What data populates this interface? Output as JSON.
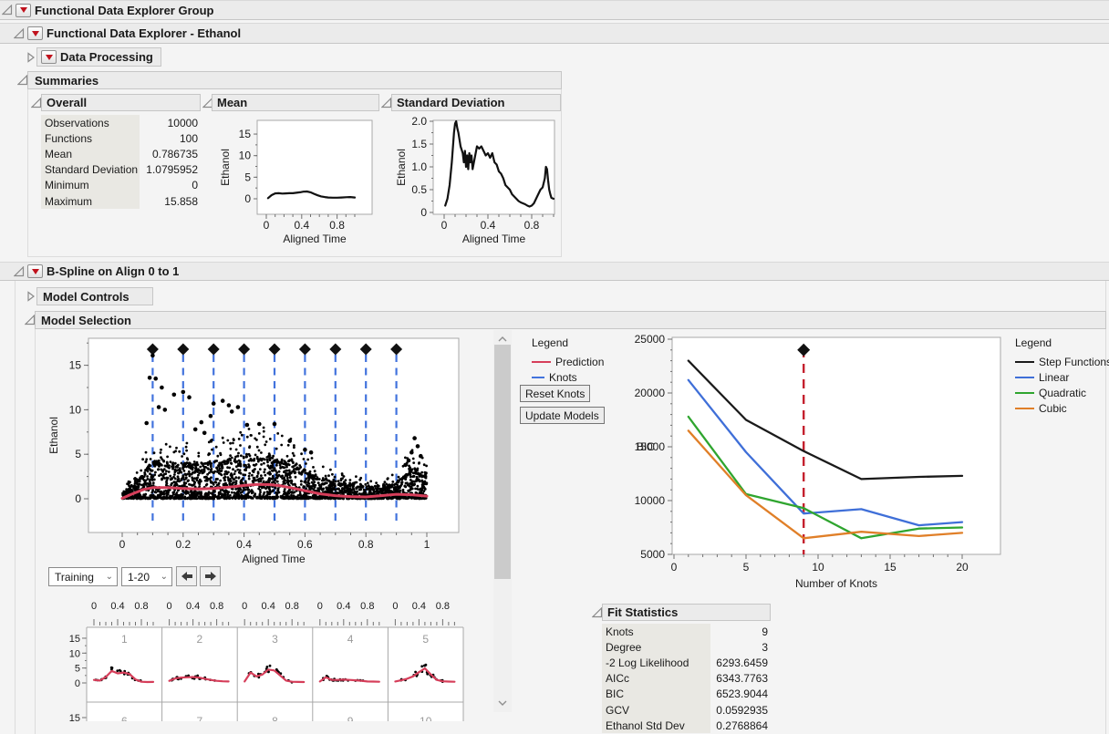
{
  "header": {
    "group_title": "Functional Data Explorer Group",
    "explorer_title": "Functional Data Explorer - Ethanol",
    "data_processing": "Data Processing",
    "summaries_title": "Summaries"
  },
  "summaries": {
    "overall": {
      "title": "Overall",
      "rows": [
        {
          "label": "Observations",
          "value": "10000"
        },
        {
          "label": "Functions",
          "value": "100"
        },
        {
          "label": "Mean",
          "value": "0.786735"
        },
        {
          "label": "Standard Deviation",
          "value": "1.0795952"
        },
        {
          "label": "Minimum",
          "value": "0"
        },
        {
          "label": "Maximum",
          "value": "15.858"
        }
      ]
    },
    "mean_title": "Mean",
    "stddev_title": "Standard Deviation"
  },
  "bspline": {
    "title": "B-Spline on Align 0 to 1",
    "model_controls": "Model Controls",
    "model_selection": "Model Selection"
  },
  "model_selection": {
    "training_dropdown": "Training",
    "range_dropdown": "1-20",
    "left_legend": {
      "title": "Legend",
      "items": [
        {
          "label": "Prediction",
          "color": "#d63e5a",
          "dash": false
        },
        {
          "label": "Knots",
          "color": "#4273dd",
          "dash": true
        }
      ]
    },
    "reset_knots": "Reset Knots",
    "update_models": "Update Models",
    "right_legend": {
      "title": "Legend",
      "items": [
        {
          "label": "Step Functions",
          "color": "#1a1a1a",
          "dash": false
        },
        {
          "label": "Linear",
          "color": "#3f6fd8",
          "dash": false
        },
        {
          "label": "Quadratic",
          "color": "#2fa52f",
          "dash": false
        },
        {
          "label": "Cubic",
          "color": "#e07f28",
          "dash": false
        }
      ]
    }
  },
  "fit_statistics": {
    "title": "Fit Statistics",
    "rows": [
      {
        "label": "Knots",
        "value": "9"
      },
      {
        "label": "Degree",
        "value": "3"
      },
      {
        "label": "-2 Log Likelihood",
        "value": "6293.6459"
      },
      {
        "label": "AICc",
        "value": "6343.7763"
      },
      {
        "label": "BIC",
        "value": "6523.9044"
      },
      {
        "label": "GCV",
        "value": "0.0592935"
      },
      {
        "label": "Ethanol Std Dev",
        "value": "0.2768864"
      }
    ]
  },
  "chart_data": {
    "mean": {
      "type": "line",
      "title": "Mean",
      "xlabel": "Aligned Time",
      "ylabel": "Ethanol",
      "xlim": [
        0,
        1.15
      ],
      "ylim": [
        -2.5,
        17.5
      ],
      "xticks": [
        0,
        0.4,
        0.8
      ],
      "xtick_labels": [
        "0",
        "0.4",
        "0.8"
      ],
      "yticks": [
        0,
        5,
        10,
        15
      ],
      "ytick_labels": [
        "0",
        "5",
        "10",
        "15"
      ],
      "color": "#111111",
      "x": [
        0.02,
        0.06,
        0.1,
        0.14,
        0.18,
        0.22,
        0.26,
        0.3,
        0.34,
        0.38,
        0.42,
        0.46,
        0.5,
        0.54,
        0.58,
        0.62,
        0.66,
        0.7,
        0.75,
        0.8,
        0.85,
        0.9,
        0.95,
        1.0
      ],
      "y": [
        0.15,
        0.85,
        1.25,
        1.3,
        1.2,
        1.25,
        1.3,
        1.3,
        1.4,
        1.5,
        1.65,
        1.7,
        1.5,
        1.15,
        0.8,
        0.55,
        0.4,
        0.3,
        0.25,
        0.25,
        0.3,
        0.35,
        0.4,
        0.3
      ]
    },
    "stddev": {
      "type": "line",
      "title": "Standard Deviation",
      "xlabel": "Aligned Time",
      "ylabel": "Ethanol",
      "xlim": [
        0,
        1.05
      ],
      "ylim": [
        0,
        2.05
      ],
      "xticks": [
        0,
        0.4,
        0.8
      ],
      "xtick_labels": [
        "0",
        "0.4",
        "0.8"
      ],
      "yticks": [
        0,
        0.5,
        1.0,
        1.5,
        2.0
      ],
      "ytick_labels": [
        "0",
        "0.5",
        "1.0",
        "1.5",
        "2.0"
      ],
      "color": "#111111",
      "x": [
        0.01,
        0.03,
        0.05,
        0.07,
        0.09,
        0.1,
        0.11,
        0.12,
        0.13,
        0.15,
        0.17,
        0.18,
        0.19,
        0.2,
        0.21,
        0.22,
        0.23,
        0.24,
        0.25,
        0.26,
        0.28,
        0.3,
        0.32,
        0.34,
        0.36,
        0.38,
        0.4,
        0.42,
        0.44,
        0.46,
        0.48,
        0.5,
        0.52,
        0.54,
        0.56,
        0.58,
        0.6,
        0.62,
        0.64,
        0.66,
        0.68,
        0.7,
        0.72,
        0.74,
        0.76,
        0.78,
        0.8,
        0.82,
        0.84,
        0.86,
        0.88,
        0.9,
        0.92,
        0.93,
        0.94,
        0.95,
        0.96,
        0.97,
        0.98,
        1.0
      ],
      "y": [
        0.15,
        0.3,
        0.6,
        1.1,
        1.75,
        1.95,
        2.0,
        1.85,
        1.75,
        1.45,
        1.3,
        1.1,
        1.35,
        1.0,
        1.25,
        0.95,
        1.3,
        1.1,
        1.25,
        0.95,
        1.2,
        1.45,
        1.4,
        1.45,
        1.35,
        1.25,
        1.3,
        1.2,
        1.3,
        1.1,
        1.05,
        0.9,
        0.85,
        0.75,
        0.6,
        0.55,
        0.5,
        0.4,
        0.35,
        0.3,
        0.25,
        0.22,
        0.2,
        0.18,
        0.15,
        0.13,
        0.15,
        0.2,
        0.3,
        0.4,
        0.5,
        0.55,
        0.75,
        1.0,
        0.95,
        0.7,
        0.5,
        0.4,
        0.32,
        0.3
      ]
    },
    "fit_scatter": {
      "type": "scatter",
      "xlabel": "Aligned Time",
      "ylabel": "Ethanol",
      "xlim": [
        -0.12,
        1.12
      ],
      "ylim": [
        -3.5,
        18
      ],
      "xticks": [
        0,
        0.2,
        0.4,
        0.6,
        0.8,
        1
      ],
      "xtick_labels": [
        "0",
        "0.2",
        "0.4",
        "0.6",
        "0.8",
        "1"
      ],
      "yticks": [
        0,
        5,
        10,
        15
      ],
      "ytick_labels": [
        "0",
        "5",
        "10",
        "15"
      ],
      "knots": [
        0.1,
        0.2,
        0.3,
        0.4,
        0.5,
        0.6,
        0.7,
        0.8,
        0.9
      ],
      "knot_color": "#4273dd",
      "knot_marker": "black-diamond",
      "prediction": {
        "color": "#d63e5a",
        "x": [
          0,
          0.03,
          0.07,
          0.1,
          0.15,
          0.2,
          0.25,
          0.3,
          0.35,
          0.4,
          0.44,
          0.48,
          0.52,
          0.56,
          0.6,
          0.65,
          0.7,
          0.75,
          0.8,
          0.85,
          0.9,
          0.95,
          1
        ],
        "y": [
          0.05,
          0.5,
          1.05,
          1.25,
          1.25,
          1.15,
          1.1,
          1.15,
          1.3,
          1.5,
          1.6,
          1.6,
          1.45,
          1.2,
          0.9,
          0.55,
          0.35,
          0.25,
          0.2,
          0.35,
          0.5,
          0.45,
          0.3
        ]
      },
      "cloud": {
        "n_core": 2100,
        "n_upper": 380,
        "n_floor": 420,
        "seed": 42,
        "envelope": [
          0.5,
          2.2,
          4.3,
          4.3,
          4.1,
          4.0,
          4.3,
          4.6,
          5.0,
          5.1,
          4.9,
          4.4,
          3.4,
          2.4,
          1.9,
          1.7,
          1.4,
          1.1,
          1.9,
          3.6,
          2.8
        ]
      },
      "outliers": [
        [
          0.1,
          16.1
        ],
        [
          0.09,
          13.6
        ],
        [
          0.11,
          13.5
        ],
        [
          0.13,
          12.5
        ],
        [
          0.12,
          10.3
        ],
        [
          0.14,
          10.0
        ],
        [
          0.17,
          11.7
        ],
        [
          0.2,
          12.0
        ],
        [
          0.22,
          11.4
        ],
        [
          0.08,
          8.5
        ],
        [
          0.26,
          8.6
        ],
        [
          0.24,
          7.8
        ],
        [
          0.27,
          7.4
        ],
        [
          0.29,
          9.3
        ],
        [
          0.3,
          10.7
        ],
        [
          0.33,
          11.0
        ],
        [
          0.35,
          10.5
        ],
        [
          0.36,
          9.8
        ],
        [
          0.38,
          10.3
        ],
        [
          0.41,
          8.3
        ],
        [
          0.45,
          8.4
        ],
        [
          0.5,
          8.4
        ],
        [
          0.55,
          6.5
        ],
        [
          0.6,
          5.5
        ],
        [
          0.62,
          5.2
        ],
        [
          0.93,
          3.8
        ],
        [
          0.94,
          4.3
        ],
        [
          0.95,
          5.2
        ],
        [
          0.96,
          6.8
        ],
        [
          0.97,
          5.9
        ],
        [
          0.98,
          4.8
        ]
      ]
    },
    "bic": {
      "type": "line",
      "xlabel": "Number of Knots",
      "ylabel": "BIC",
      "xlim": [
        0,
        22
      ],
      "ylim": [
        5000,
        25000
      ],
      "xticks": [
        0,
        5,
        10,
        15,
        20
      ],
      "xtick_labels": [
        "0",
        "5",
        "10",
        "15",
        "20"
      ],
      "yticks": [
        5000,
        10000,
        15000,
        20000,
        25000
      ],
      "ytick_labels": [
        "5000",
        "10000",
        "15000",
        "20000",
        "25000"
      ],
      "x": [
        1,
        5,
        9,
        13,
        17,
        20
      ],
      "series": [
        {
          "name": "Step Functions",
          "color": "#1a1a1a",
          "values": [
            23000,
            17500,
            14600,
            12000,
            12200,
            12300
          ]
        },
        {
          "name": "Linear",
          "color": "#3f6fd8",
          "values": [
            21200,
            14500,
            8800,
            9200,
            7700,
            8000
          ]
        },
        {
          "name": "Quadratic",
          "color": "#2fa52f",
          "values": [
            17800,
            10600,
            9300,
            6500,
            7400,
            7500
          ]
        },
        {
          "name": "Cubic",
          "color": "#e07f28",
          "values": [
            16500,
            10500,
            6500,
            7100,
            6700,
            7000
          ]
        }
      ],
      "selected_knots": 9,
      "selector_color": "#c4202e",
      "selector_marker_y": 24000
    },
    "small_multiples": {
      "type": "grid-line",
      "xticks": [
        0,
        0.4,
        0.8
      ],
      "xtick_labels": [
        "0",
        "0.4",
        "0.8"
      ],
      "yticks": [
        0,
        5,
        10,
        15
      ],
      "ytick_labels": [
        "0",
        "5",
        "10",
        "15"
      ],
      "curve_color": "#d63e5a",
      "label_color": "#9a9a9a",
      "x": [
        0,
        0.1,
        0.2,
        0.3,
        0.4,
        0.5,
        0.6,
        0.7,
        0.8,
        0.9,
        1.0
      ],
      "cells": [
        {
          "label": "1",
          "y": [
            1.0,
            0.8,
            2.0,
            4.0,
            3.2,
            3.5,
            3.0,
            1.2,
            0.4,
            0.3,
            0.35
          ]
        },
        {
          "label": "2",
          "y": [
            0.7,
            1.5,
            1.8,
            1.9,
            2.0,
            1.8,
            1.4,
            1.0,
            0.7,
            0.55,
            0.5
          ]
        },
        {
          "label": "3",
          "y": [
            0.5,
            3.5,
            2.2,
            2.8,
            4.5,
            4.2,
            2.5,
            0.8,
            0.4,
            0.35,
            0.3
          ]
        },
        {
          "label": "4",
          "y": [
            0.5,
            1.9,
            1.0,
            1.0,
            1.1,
            1.0,
            0.9,
            0.7,
            0.5,
            0.45,
            0.4
          ]
        },
        {
          "label": "5",
          "y": [
            0.5,
            0.9,
            1.4,
            2.2,
            3.6,
            4.9,
            2.8,
            1.0,
            0.55,
            0.45,
            0.4
          ]
        }
      ],
      "second_row_labels": [
        "6",
        "7",
        "8",
        "9",
        "10"
      ]
    }
  }
}
